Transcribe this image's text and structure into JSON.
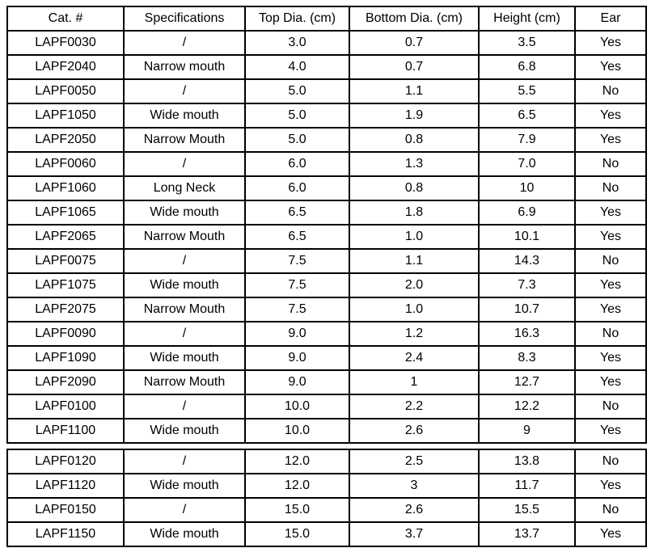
{
  "table": {
    "columns": [
      "Cat. #",
      "Specifications",
      "Top Dia. (cm)",
      "Bottom Dia. (cm)",
      "Height (cm)",
      "Ear"
    ],
    "upper_row_count": 17,
    "rows": [
      [
        "LAPF0030",
        "/",
        "3.0",
        "0.7",
        "3.5",
        "Yes"
      ],
      [
        "LAPF2040",
        "Narrow mouth",
        "4.0",
        "0.7",
        "6.8",
        "Yes"
      ],
      [
        "LAPF0050",
        "/",
        "5.0",
        "1.1",
        "5.5",
        "No"
      ],
      [
        "LAPF1050",
        "Wide mouth",
        "5.0",
        "1.9",
        "6.5",
        "Yes"
      ],
      [
        "LAPF2050",
        "Narrow Mouth",
        "5.0",
        "0.8",
        "7.9",
        "Yes"
      ],
      [
        "LAPF0060",
        "/",
        "6.0",
        "1.3",
        "7.0",
        "No"
      ],
      [
        "LAPF1060",
        "Long Neck",
        "6.0",
        "0.8",
        "10",
        "No"
      ],
      [
        "LAPF1065",
        "Wide mouth",
        "6.5",
        "1.8",
        "6.9",
        "Yes"
      ],
      [
        "LAPF2065",
        "Narrow Mouth",
        "6.5",
        "1.0",
        "10.1",
        "Yes"
      ],
      [
        "LAPF0075",
        "/",
        "7.5",
        "1.1",
        "14.3",
        "No"
      ],
      [
        "LAPF1075",
        "Wide mouth",
        "7.5",
        "2.0",
        "7.3",
        "Yes"
      ],
      [
        "LAPF2075",
        "Narrow Mouth",
        "7.5",
        "1.0",
        "10.7",
        "Yes"
      ],
      [
        "LAPF0090",
        "/",
        "9.0",
        "1.2",
        "16.3",
        "No"
      ],
      [
        "LAPF1090",
        "Wide mouth",
        "9.0",
        "2.4",
        "8.3",
        "Yes"
      ],
      [
        "LAPF2090",
        "Narrow Mouth",
        "9.0",
        "1",
        "12.7",
        "Yes"
      ],
      [
        "LAPF0100",
        "/",
        "10.0",
        "2.2",
        "12.2",
        "No"
      ],
      [
        "LAPF1100",
        "Wide mouth",
        "10.0",
        "2.6",
        "9",
        "Yes"
      ],
      [
        "LAPF0120",
        "/",
        "12.0",
        "2.5",
        "13.8",
        "No"
      ],
      [
        "LAPF1120",
        "Wide mouth",
        "12.0",
        "3",
        "11.7",
        "Yes"
      ],
      [
        "LAPF0150",
        "/",
        "15.0",
        "2.6",
        "15.5",
        "No"
      ],
      [
        "LAPF1150",
        "Wide mouth",
        "15.0",
        "3.7",
        "13.7",
        "Yes"
      ]
    ]
  }
}
